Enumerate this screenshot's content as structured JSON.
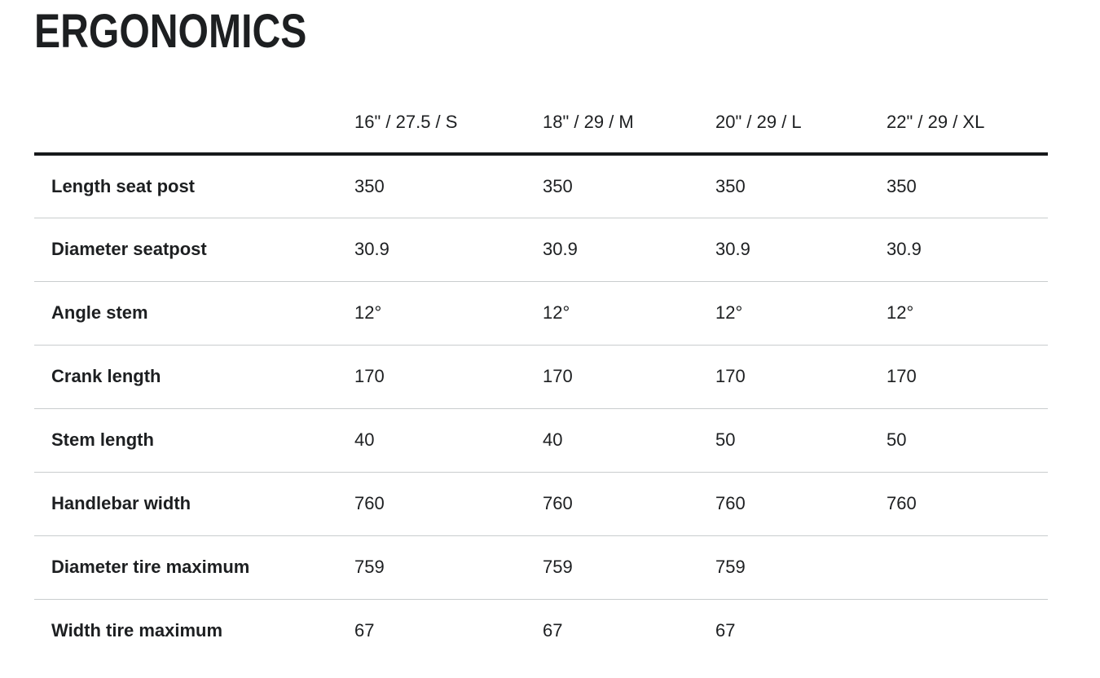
{
  "page": {
    "title": "ERGONOMICS"
  },
  "theme": {
    "text": "#1d1f21",
    "divider": "#c9cdce",
    "header-rule": "#17191b",
    "background": "#ffffff"
  },
  "table": {
    "columns": [
      "16\" / 27.5 / S",
      "18\" / 29 / M",
      "20\" / 29 / L",
      "22\" / 29 / XL"
    ],
    "rows": [
      {
        "label": "Length seat post",
        "values": [
          "350",
          "350",
          "350",
          "350"
        ]
      },
      {
        "label": "Diameter seatpost",
        "values": [
          "30.9",
          "30.9",
          "30.9",
          "30.9"
        ]
      },
      {
        "label": "Angle stem",
        "values": [
          "12°",
          "12°",
          "12°",
          "12°"
        ]
      },
      {
        "label": "Crank length",
        "values": [
          "170",
          "170",
          "170",
          "170"
        ]
      },
      {
        "label": "Stem length",
        "values": [
          "40",
          "40",
          "50",
          "50"
        ]
      },
      {
        "label": "Handlebar width",
        "values": [
          "760",
          "760",
          "760",
          "760"
        ]
      },
      {
        "label": "Diameter tire maximum",
        "values": [
          "759",
          "759",
          "759",
          ""
        ]
      },
      {
        "label": "Width tire maximum",
        "values": [
          "67",
          "67",
          "67",
          ""
        ]
      }
    ]
  }
}
